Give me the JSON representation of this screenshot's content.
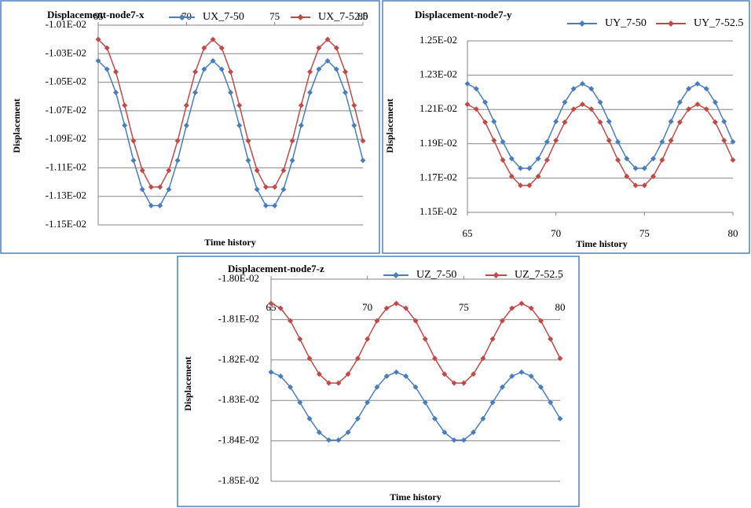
{
  "chart_data": [
    {
      "type": "line",
      "title": "Displacement-node7-x",
      "x_label": "Time history",
      "y_label": "Displacement",
      "x": [
        65,
        65.5,
        66,
        66.5,
        67,
        67.5,
        68,
        68.5,
        69,
        69.5,
        70,
        70.5,
        71,
        71.5,
        72,
        72.5,
        73,
        73.5,
        74,
        74.5,
        75,
        75.5,
        76,
        76.5,
        77,
        77.5,
        78,
        78.5,
        79,
        79.5,
        80
      ],
      "series": [
        {
          "name": "UX_7-50",
          "color": "#4a7ebb",
          "values": [
            -0.01035,
            -0.010409,
            -0.010572,
            -0.010803,
            -0.011048,
            -0.011251,
            -0.011365,
            -0.011365,
            -0.011251,
            -0.011048,
            -0.010803,
            -0.010572,
            -0.010409,
            -0.01035,
            -0.010409,
            -0.010572,
            -0.010803,
            -0.011048,
            -0.011251,
            -0.011365,
            -0.011365,
            -0.011251,
            -0.011048,
            -0.010803,
            -0.010572,
            -0.010409,
            -0.01035,
            -0.010409,
            -0.010572,
            -0.010803,
            -0.011048
          ]
        },
        {
          "name": "UX_7-52.5",
          "color": "#be4b48",
          "values": [
            -0.0102,
            -0.01026,
            -0.010427,
            -0.010662,
            -0.010911,
            -0.011118,
            -0.011235,
            -0.011235,
            -0.011118,
            -0.010911,
            -0.010662,
            -0.010427,
            -0.01026,
            -0.0102,
            -0.01026,
            -0.010427,
            -0.010662,
            -0.010911,
            -0.011118,
            -0.011235,
            -0.011235,
            -0.011118,
            -0.010911,
            -0.010662,
            -0.010427,
            -0.01026,
            -0.0102,
            -0.01026,
            -0.010427,
            -0.010662,
            -0.010911
          ]
        }
      ],
      "xlim": [
        65,
        80
      ],
      "xticks": [
        65,
        70,
        75,
        80
      ],
      "x_axis_position": "top",
      "ylim": [
        -0.0115,
        -0.0101
      ],
      "yticks": [
        {
          "value": -0.0101,
          "label": "-1.01E-02"
        },
        {
          "value": -0.0103,
          "label": "-1.03E-02"
        },
        {
          "value": -0.0105,
          "label": "-1.05E-02"
        },
        {
          "value": -0.0107,
          "label": "-1.07E-02"
        },
        {
          "value": -0.0109,
          "label": "-1.09E-02"
        },
        {
          "value": -0.0111,
          "label": "-1.11E-02"
        },
        {
          "value": -0.0113,
          "label": "-1.13E-02"
        },
        {
          "value": -0.0115,
          "label": "-1.15E-02"
        }
      ],
      "grid": true,
      "marker": "diamond"
    },
    {
      "type": "line",
      "title": "Displacement-node7-y",
      "x_label": "Time history",
      "y_label": "Displacement",
      "x": [
        65,
        65.5,
        66,
        66.5,
        67,
        67.5,
        68,
        68.5,
        69,
        69.5,
        70,
        70.5,
        71,
        71.5,
        72,
        72.5,
        73,
        73.5,
        74,
        74.5,
        75,
        75.5,
        76,
        76.5,
        77,
        77.5,
        78,
        78.5,
        79,
        79.5,
        80
      ],
      "series": [
        {
          "name": "UY_7-50",
          "color": "#4a7ebb",
          "values": [
            0.01225,
            0.012221,
            0.012142,
            0.01203,
            0.011911,
            0.011813,
            0.011757,
            0.011757,
            0.011813,
            0.011911,
            0.01203,
            0.012142,
            0.012221,
            0.01225,
            0.012221,
            0.012142,
            0.01203,
            0.011911,
            0.011813,
            0.011757,
            0.011757,
            0.011813,
            0.011911,
            0.01203,
            0.012142,
            0.012221,
            0.01225,
            0.012221,
            0.012142,
            0.01203,
            0.011911
          ]
        },
        {
          "name": "UY_7-52.5",
          "color": "#be4b48",
          "values": [
            0.01213,
            0.012102,
            0.012026,
            0.011919,
            0.011805,
            0.01171,
            0.011657,
            0.011657,
            0.01171,
            0.011805,
            0.011919,
            0.012026,
            0.012102,
            0.01213,
            0.012102,
            0.012026,
            0.011919,
            0.011805,
            0.01171,
            0.011657,
            0.011657,
            0.01171,
            0.011805,
            0.011919,
            0.012026,
            0.012102,
            0.01213,
            0.012102,
            0.012026,
            0.011919,
            0.011805
          ]
        }
      ],
      "xlim": [
        65,
        80
      ],
      "xticks": [
        65,
        70,
        75,
        80
      ],
      "x_axis_position": "bottom",
      "ylim": [
        0.0115,
        0.0125
      ],
      "yticks": [
        {
          "value": 0.0125,
          "label": "1.25E-02"
        },
        {
          "value": 0.0123,
          "label": "1.23E-02"
        },
        {
          "value": 0.0121,
          "label": "1.21E-02"
        },
        {
          "value": 0.0119,
          "label": "1.19E-02"
        },
        {
          "value": 0.0117,
          "label": "1.17E-02"
        },
        {
          "value": 0.0115,
          "label": "1.15E-02"
        }
      ],
      "grid": true,
      "marker": "diamond"
    },
    {
      "type": "line",
      "title": "Displacement-node7-z",
      "x_label": "Time history",
      "y_label": "Displacement",
      "x": [
        65,
        65.5,
        66,
        66.5,
        67,
        67.5,
        68,
        68.5,
        69,
        69.5,
        70,
        70.5,
        71,
        71.5,
        72,
        72.5,
        73,
        73.5,
        74,
        74.5,
        75,
        75.5,
        76,
        76.5,
        77,
        77.5,
        78,
        78.5,
        79,
        79.5,
        80
      ],
      "series": [
        {
          "name": "UZ_7-50",
          "color": "#4a7ebb",
          "values": [
            -0.01823,
            -0.01824,
            -0.018267,
            -0.018305,
            -0.018345,
            -0.018379,
            -0.018398,
            -0.018398,
            -0.018379,
            -0.018345,
            -0.018305,
            -0.018267,
            -0.01824,
            -0.01823,
            -0.01824,
            -0.018267,
            -0.018305,
            -0.018345,
            -0.018379,
            -0.018398,
            -0.018398,
            -0.018379,
            -0.018345,
            -0.018305,
            -0.018267,
            -0.01824,
            -0.01823,
            -0.01824,
            -0.018267,
            -0.018305,
            -0.018345
          ]
        },
        {
          "name": "UZ_7-52.5",
          "color": "#be4b48",
          "values": [
            -0.01806,
            -0.018072,
            -0.018103,
            -0.018148,
            -0.018196,
            -0.018235,
            -0.018257,
            -0.018257,
            -0.018235,
            -0.018196,
            -0.018148,
            -0.018103,
            -0.018072,
            -0.01806,
            -0.018072,
            -0.018103,
            -0.018148,
            -0.018196,
            -0.018235,
            -0.018257,
            -0.018257,
            -0.018235,
            -0.018196,
            -0.018148,
            -0.018103,
            -0.018072,
            -0.01806,
            -0.018072,
            -0.018103,
            -0.018148,
            -0.018196
          ]
        }
      ],
      "xlim": [
        65,
        80
      ],
      "xticks": [
        65,
        70,
        75,
        80
      ],
      "x_axis_position": "top",
      "ylim": [
        -0.0185,
        -0.018
      ],
      "yticks": [
        {
          "value": -0.018,
          "label": "-1.80E-02"
        },
        {
          "value": -0.0181,
          "label": "-1.81E-02"
        },
        {
          "value": -0.0182,
          "label": "-1.82E-02"
        },
        {
          "value": -0.0183,
          "label": "-1.83E-02"
        },
        {
          "value": -0.0184,
          "label": "-1.84E-02"
        },
        {
          "value": -0.0185,
          "label": "-1.85E-02"
        }
      ],
      "grid": true,
      "marker": "diamond"
    }
  ]
}
